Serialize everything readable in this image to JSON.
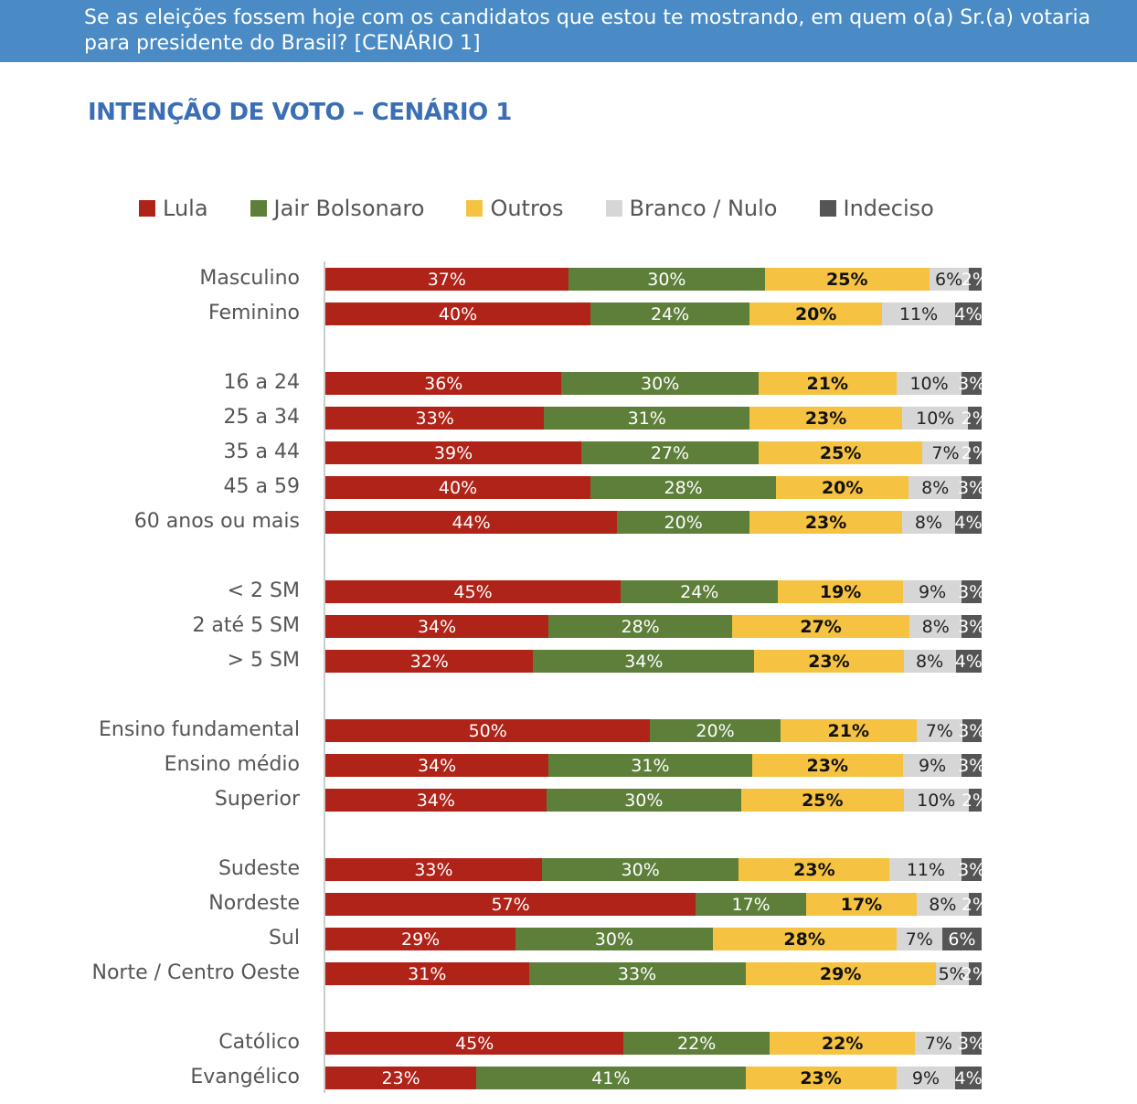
{
  "header": {
    "question": "Se as eleições fossem hoje com os candidatos que estou te mostrando, em quem o(a) Sr.(a) votaria para presidente do Brasil? [CENÁRIO 1]"
  },
  "chart_data": {
    "type": "bar",
    "stacked": true,
    "orientation": "horizontal",
    "title": "INTENÇÃO DE VOTO – CENÁRIO 1",
    "legend_position": "top",
    "series": [
      {
        "name": "Lula",
        "color": "#b02318",
        "label_color": "#ffffff"
      },
      {
        "name": "Jair Bolsonaro",
        "color": "#5e7f3a",
        "label_color": "#ffffff"
      },
      {
        "name": "Outros",
        "color": "#f5c242",
        "label_color": "#111111"
      },
      {
        "name": "Branco / Nulo",
        "color": "#d6d6d6",
        "label_color": "#222222"
      },
      {
        "name": "Indeciso",
        "color": "#555555",
        "label_color": "#ffffff"
      }
    ],
    "groups": [
      [
        {
          "category": "Masculino",
          "values": [
            37,
            30,
            25,
            6,
            2
          ]
        },
        {
          "category": "Feminino",
          "values": [
            40,
            24,
            20,
            11,
            4
          ]
        }
      ],
      [
        {
          "category": "16 a 24",
          "values": [
            36,
            30,
            21,
            10,
            3
          ]
        },
        {
          "category": "25 a 34",
          "values": [
            33,
            31,
            23,
            10,
            2
          ]
        },
        {
          "category": "35 a 44",
          "values": [
            39,
            27,
            25,
            7,
            2
          ]
        },
        {
          "category": "45 a 59",
          "values": [
            40,
            28,
            20,
            8,
            3
          ]
        },
        {
          "category": "60 anos ou mais",
          "values": [
            44,
            20,
            23,
            8,
            4
          ]
        }
      ],
      [
        {
          "category": "< 2 SM",
          "values": [
            45,
            24,
            19,
            9,
            3
          ]
        },
        {
          "category": "2 até 5 SM",
          "values": [
            34,
            28,
            27,
            8,
            3
          ]
        },
        {
          "category": "> 5 SM",
          "values": [
            32,
            34,
            23,
            8,
            4
          ]
        }
      ],
      [
        {
          "category": "Ensino fundamental",
          "values": [
            50,
            20,
            21,
            7,
            3
          ]
        },
        {
          "category": "Ensino médio",
          "values": [
            34,
            31,
            23,
            9,
            3
          ]
        },
        {
          "category": "Superior",
          "values": [
            34,
            30,
            25,
            10,
            2
          ]
        }
      ],
      [
        {
          "category": "Sudeste",
          "values": [
            33,
            30,
            23,
            11,
            3
          ]
        },
        {
          "category": "Nordeste",
          "values": [
            57,
            17,
            17,
            8,
            2
          ]
        },
        {
          "category": "Sul",
          "values": [
            29,
            30,
            28,
            7,
            6
          ]
        },
        {
          "category": "Norte / Centro Oeste",
          "values": [
            31,
            33,
            29,
            5,
            2
          ]
        }
      ],
      [
        {
          "category": "Católico",
          "values": [
            45,
            22,
            22,
            7,
            3
          ]
        },
        {
          "category": "Evangélico",
          "values": [
            23,
            41,
            23,
            9,
            4
          ]
        }
      ]
    ]
  }
}
